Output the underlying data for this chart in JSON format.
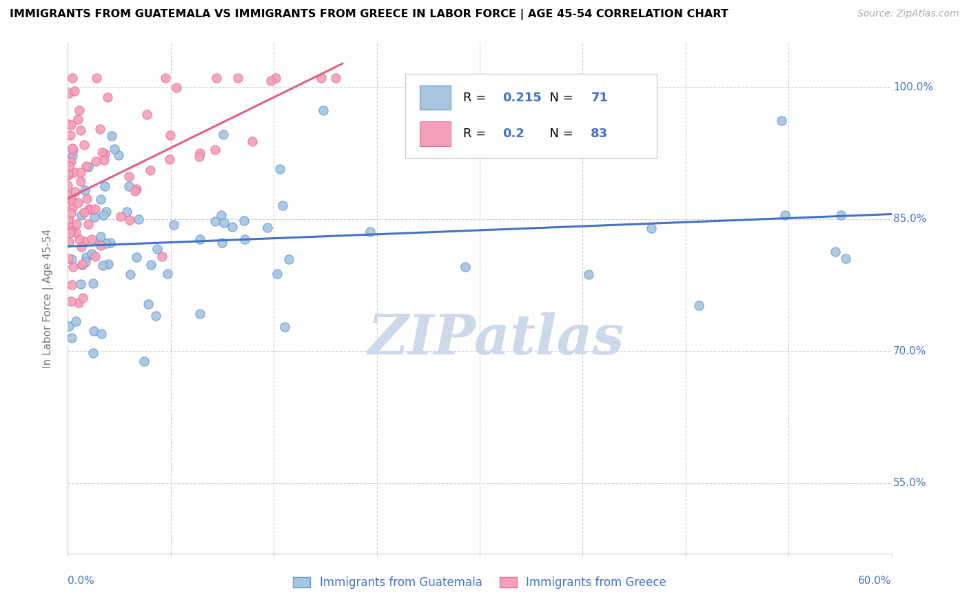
{
  "title": "IMMIGRANTS FROM GUATEMALA VS IMMIGRANTS FROM GREECE IN LABOR FORCE | AGE 45-54 CORRELATION CHART",
  "source": "Source: ZipAtlas.com",
  "ylabel": "In Labor Force | Age 45-54",
  "ytick_labels": [
    "55.0%",
    "70.0%",
    "85.0%",
    "100.0%"
  ],
  "ytick_vals": [
    0.55,
    0.7,
    0.85,
    1.0
  ],
  "xlim": [
    0.0,
    0.6
  ],
  "ylim": [
    0.47,
    1.05
  ],
  "R_blue": 0.215,
  "N_blue": 71,
  "R_pink": 0.2,
  "N_pink": 83,
  "blue_fill": "#a8c4e0",
  "blue_edge": "#5b9bd5",
  "pink_fill": "#f4a0b8",
  "pink_edge": "#e8709a",
  "blue_line": "#4472c4",
  "pink_line": "#e06080",
  "text_blue": "#4472c4",
  "legend_label_blue": "Immigrants from Guatemala",
  "legend_label_pink": "Immigrants from Greece",
  "watermark": "ZIPatlas",
  "watermark_color": "#ccd9e8",
  "grid_color": "#cccccc",
  "spine_color": "#cccccc"
}
